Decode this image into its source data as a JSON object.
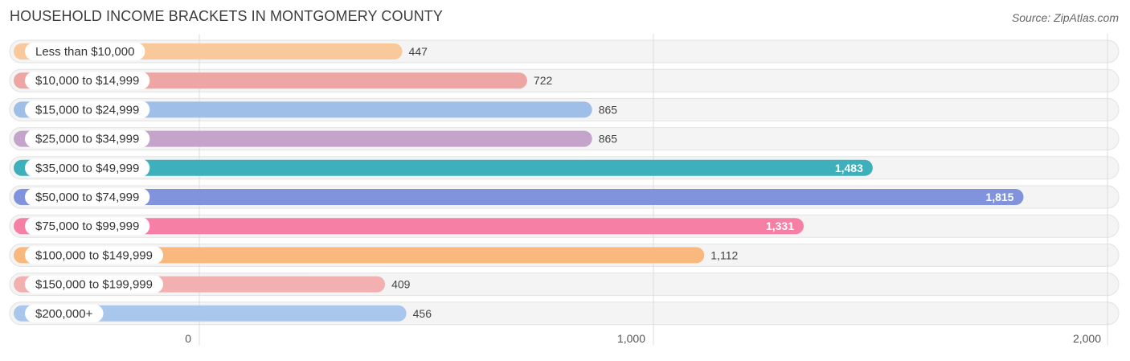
{
  "header": {
    "title": "HOUSEHOLD INCOME BRACKETS IN MONTGOMERY COUNTY",
    "source": "Source: ZipAtlas.com"
  },
  "chart_data": {
    "type": "bar",
    "orientation": "horizontal",
    "title": "HOUSEHOLD INCOME BRACKETS IN MONTGOMERY COUNTY",
    "xlabel": "",
    "ylabel": "",
    "xlim": [
      0,
      2000
    ],
    "grid": true,
    "ticks": [
      {
        "value": 0,
        "label": "0"
      },
      {
        "value": 1000,
        "label": "1,000"
      },
      {
        "value": 2000,
        "label": "2,000"
      }
    ],
    "categories": [
      "Less than $10,000",
      "$10,000 to $14,999",
      "$15,000 to $24,999",
      "$25,000 to $34,999",
      "$35,000 to $49,999",
      "$50,000 to $74,999",
      "$75,000 to $99,999",
      "$100,000 to $149,999",
      "$150,000 to $199,999",
      "$200,000+"
    ],
    "values": [
      447,
      722,
      865,
      865,
      1483,
      1815,
      1331,
      1112,
      409,
      456
    ],
    "value_labels": [
      "447",
      "722",
      "865",
      "865",
      "1,483",
      "1,815",
      "1,331",
      "1,112",
      "409",
      "456"
    ],
    "colors": [
      "#f9c99b",
      "#eea6a5",
      "#9fbfe8",
      "#c5a4cc",
      "#3eb0bb",
      "#8093dc",
      "#f57fa5",
      "#f8b87e",
      "#f2b1b0",
      "#a9c7ec"
    ],
    "label_inside": [
      false,
      false,
      false,
      false,
      true,
      true,
      true,
      false,
      false,
      false
    ]
  }
}
